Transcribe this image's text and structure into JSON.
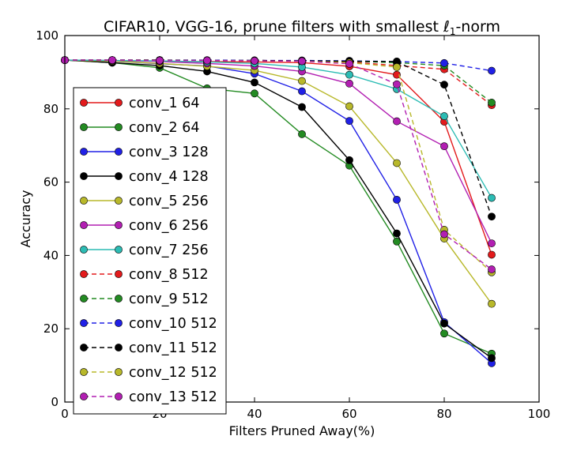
{
  "chart_data": {
    "type": "line",
    "title": "CIFAR10, VGG-16, prune filters with smallest ",
    "title_symbol": "ℓ",
    "title_sub": "1",
    "title_suffix": "-norm",
    "xlabel": "Filters Pruned Away(%)",
    "ylabel": "Accuracy",
    "xlim": [
      0,
      100
    ],
    "ylim": [
      0,
      100
    ],
    "xticks": [
      "0",
      "20",
      "40",
      "60",
      "80",
      "100"
    ],
    "yticks": [
      "0",
      "20",
      "40",
      "60",
      "80",
      "100"
    ],
    "grid": false,
    "legend_position": "left",
    "x": [
      0,
      10,
      20,
      30,
      40,
      50,
      60,
      70,
      80,
      90
    ],
    "series": [
      {
        "name": "conv_1 64",
        "color": "#e31a1c",
        "dash": false,
        "values": [
          93.3,
          93.1,
          93.0,
          92.9,
          92.8,
          92.6,
          91.6,
          89.3,
          76.5,
          40.2
        ]
      },
      {
        "name": "conv_2 64",
        "color": "#238b22",
        "dash": false,
        "values": [
          93.3,
          92.6,
          91.2,
          85.6,
          84.2,
          73.1,
          64.5,
          43.8,
          18.7,
          13.2
        ]
      },
      {
        "name": "conv_3 128",
        "color": "#2020e6",
        "dash": false,
        "values": [
          93.3,
          93.0,
          92.3,
          91.7,
          89.6,
          84.8,
          76.7,
          55.2,
          21.8,
          10.6
        ]
      },
      {
        "name": "conv_4 128",
        "color": "#000000",
        "dash": false,
        "values": [
          93.3,
          92.6,
          91.8,
          90.2,
          87.2,
          80.5,
          66.0,
          46.0,
          21.4,
          12.0
        ]
      },
      {
        "name": "conv_5 256",
        "color": "#b8b82a",
        "dash": false,
        "values": [
          93.3,
          93.0,
          92.4,
          91.6,
          90.5,
          87.6,
          80.7,
          65.2,
          44.6,
          26.8
        ]
      },
      {
        "name": "conv_6 256",
        "color": "#b21fb2",
        "dash": false,
        "values": [
          93.3,
          93.2,
          92.9,
          92.4,
          91.7,
          90.2,
          86.9,
          76.6,
          69.8,
          43.3
        ]
      },
      {
        "name": "conv_7 256",
        "color": "#2cbcb4",
        "dash": false,
        "values": [
          93.3,
          93.2,
          93.1,
          92.8,
          92.4,
          91.4,
          89.3,
          85.4,
          78.0,
          55.7
        ]
      },
      {
        "name": "conv_8 512",
        "color": "#e31a1c",
        "dash": true,
        "values": [
          93.3,
          93.3,
          93.3,
          93.2,
          93.2,
          93.1,
          92.8,
          91.8,
          90.8,
          81.0
        ]
      },
      {
        "name": "conv_9 512",
        "color": "#238b22",
        "dash": true,
        "values": [
          93.3,
          93.3,
          93.3,
          93.2,
          93.2,
          93.1,
          93.0,
          92.6,
          91.8,
          81.7
        ]
      },
      {
        "name": "conv_10 512",
        "color": "#2020e6",
        "dash": true,
        "values": [
          93.3,
          93.3,
          93.3,
          93.3,
          93.2,
          93.2,
          93.1,
          92.9,
          92.5,
          90.4
        ]
      },
      {
        "name": "conv_11 512",
        "color": "#000000",
        "dash": true,
        "values": [
          93.3,
          93.3,
          93.3,
          93.2,
          93.2,
          93.1,
          93.0,
          92.9,
          86.6,
          50.6
        ]
      },
      {
        "name": "conv_12 512",
        "color": "#b8b82a",
        "dash": true,
        "values": [
          93.3,
          93.3,
          93.2,
          93.2,
          93.1,
          93.0,
          92.6,
          91.4,
          47.0,
          35.4
        ]
      },
      {
        "name": "conv_13 512",
        "color": "#b21fb2",
        "dash": true,
        "values": [
          93.3,
          93.3,
          93.2,
          93.2,
          93.1,
          93.0,
          92.3,
          86.7,
          45.8,
          36.2
        ]
      }
    ]
  }
}
